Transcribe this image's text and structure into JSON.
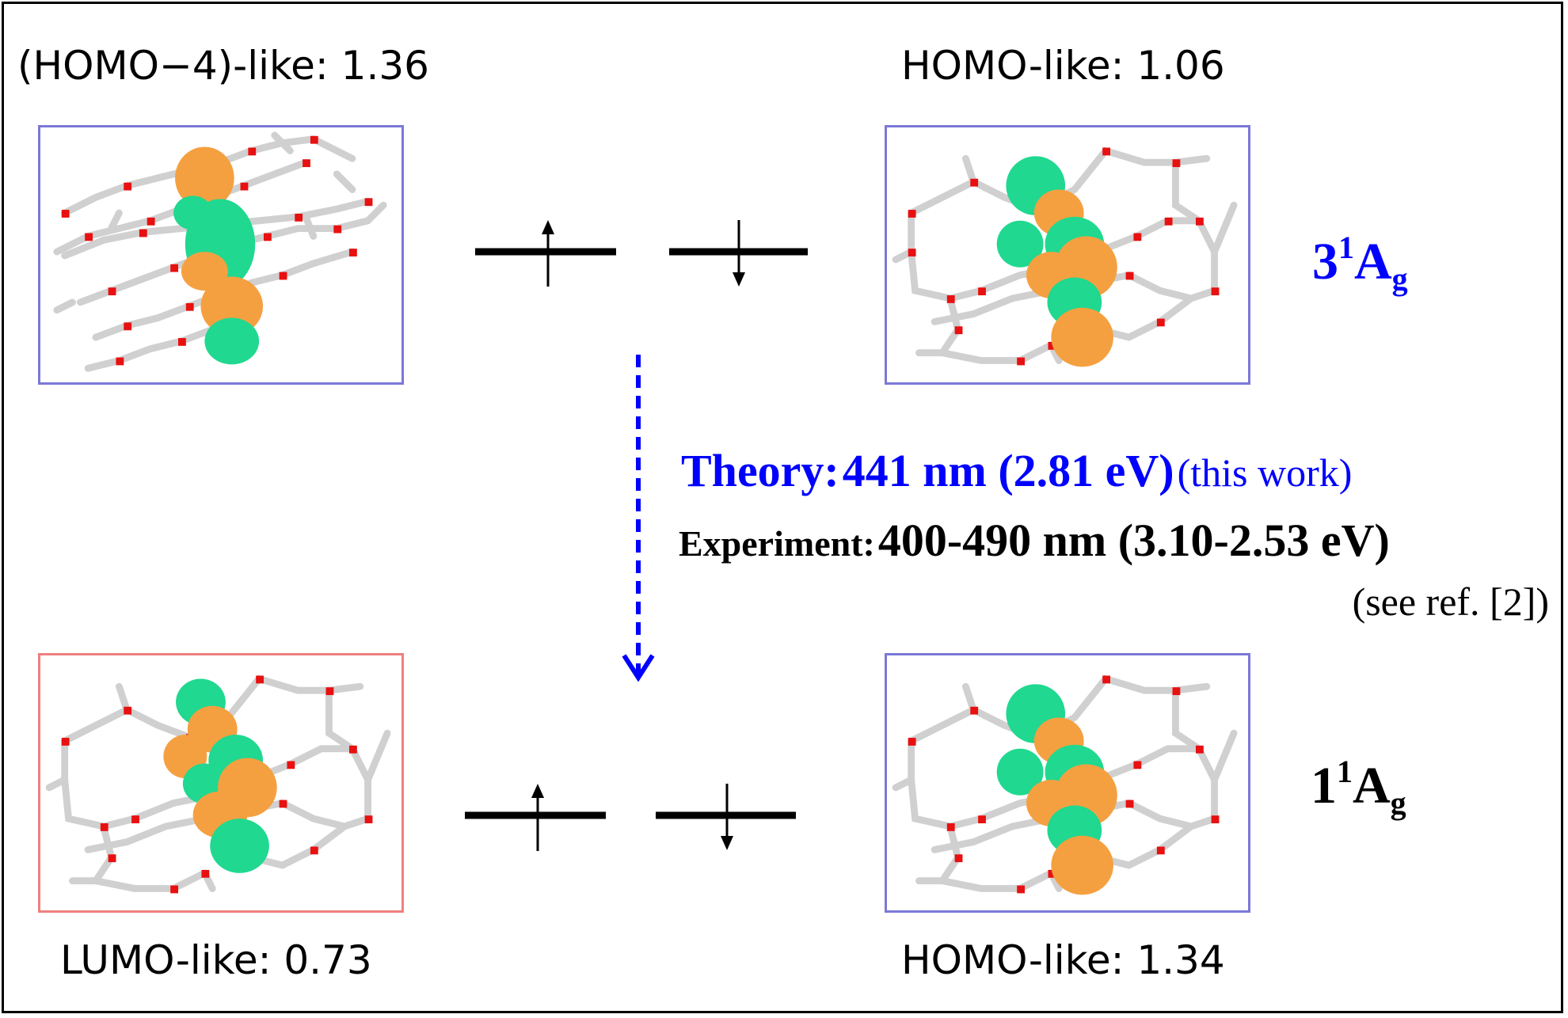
{
  "orbitals": {
    "top_left": {
      "label": "(HOMO−4)-like: 1.36"
    },
    "top_right": {
      "label": "HOMO-like: 1.06"
    },
    "bottom_left": {
      "label": "LUMO-like: 0.73"
    },
    "bottom_right": {
      "label": "HOMO-like: 1.34"
    }
  },
  "states": {
    "excited": {
      "main": "3",
      "sup": "1",
      "letter": "A",
      "sub": "g",
      "color": "#0000ff"
    },
    "ground": {
      "main": "1",
      "sup": "1",
      "letter": "A",
      "sub": "g",
      "color": "#000000"
    }
  },
  "transition": {
    "theory_prefix": "Theory:",
    "theory_value": "441 nm (2.81 eV)",
    "theory_note": "(this work)",
    "experiment_prefix": "Experiment:",
    "experiment_value": "400-490 nm (3.10-2.53 eV)",
    "experiment_note": "(see ref. [2])",
    "theory_color": "#0000ff",
    "arrow_color": "#0000ff"
  },
  "colors": {
    "atom_o": "#e81010",
    "bond": "#d0d0d0",
    "lobe_orange": "#f5a040",
    "lobe_green": "#20d890"
  }
}
